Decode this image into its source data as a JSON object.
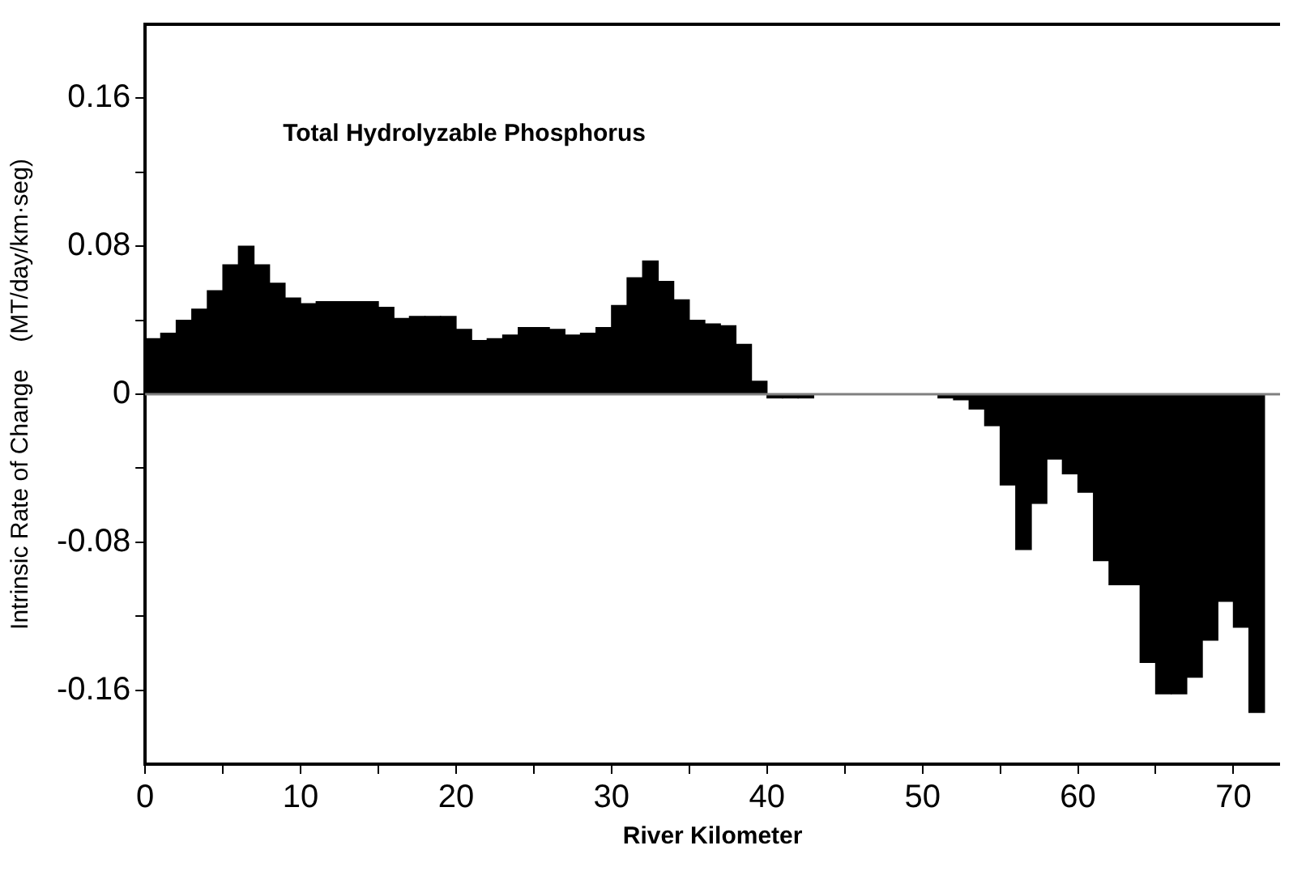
{
  "chart_data": {
    "type": "bar",
    "title": "Total Hydrolyzable Phosphorus",
    "xlabel": "River Kilometer",
    "ylabel": "Intrinsic Rate of Change    (MT/day/km·seg)",
    "x": [
      0.5,
      1.5,
      2.5,
      3.5,
      4.5,
      5.5,
      6.5,
      7.5,
      8.5,
      9.5,
      10.5,
      11.5,
      12.5,
      13.5,
      14.5,
      15.5,
      16.5,
      17.5,
      18.5,
      19.5,
      20.5,
      21.5,
      22.5,
      23.5,
      24.5,
      25.5,
      26.5,
      27.5,
      28.5,
      29.5,
      30.5,
      31.5,
      32.5,
      33.5,
      34.5,
      35.5,
      36.5,
      37.5,
      38.5,
      39.5,
      40.5,
      41.5,
      42.5,
      43.5,
      44.5,
      45.5,
      46.5,
      47.5,
      48.5,
      49.5,
      50.5,
      51.5,
      52.5,
      53.5,
      54.5,
      55.5,
      56.5,
      57.5,
      58.5,
      59.5,
      60.5,
      61.5,
      62.5,
      63.5,
      64.5,
      65.5,
      66.5,
      67.5,
      68.5,
      69.5,
      70.5,
      71.5
    ],
    "values": [
      0.03,
      0.033,
      0.04,
      0.046,
      0.056,
      0.07,
      0.08,
      0.07,
      0.06,
      0.052,
      0.049,
      0.05,
      0.05,
      0.05,
      0.05,
      0.047,
      0.041,
      0.042,
      0.042,
      0.042,
      0.035,
      0.029,
      0.03,
      0.032,
      0.036,
      0.036,
      0.035,
      0.032,
      0.033,
      0.036,
      0.048,
      0.063,
      0.072,
      0.061,
      0.051,
      0.04,
      0.038,
      0.037,
      0.027,
      0.007,
      -0.002,
      -0.002,
      -0.002,
      0,
      0,
      0,
      0,
      0,
      0,
      0,
      0,
      -0.002,
      -0.003,
      -0.008,
      -0.017,
      -0.049,
      -0.084,
      -0.059,
      -0.035,
      -0.043,
      -0.053,
      -0.09,
      -0.103,
      -0.103,
      -0.145,
      -0.162,
      -0.162,
      -0.153,
      -0.133,
      -0.112,
      -0.126,
      -0.172
    ],
    "color": "#000000",
    "xlim": [
      0,
      73
    ],
    "xticks": [
      0,
      {
        "value": 5,
        "label": null
      },
      10,
      {
        "value": 15,
        "label": null
      },
      20,
      {
        "value": 25,
        "label": null
      },
      30,
      {
        "value": 35,
        "label": null
      },
      40,
      {
        "value": 45,
        "label": null
      },
      50,
      {
        "value": 55,
        "label": null
      },
      60,
      {
        "value": 65,
        "label": null
      },
      70
    ],
    "ylim": [
      -0.2,
      0.2
    ],
    "yticks": [
      -0.16,
      {
        "value": -0.12,
        "label": null
      },
      -0.08,
      {
        "value": -0.04,
        "label": null
      },
      0,
      {
        "value": 0.04,
        "label": null
      },
      0.08,
      {
        "value": 0.12,
        "label": null
      },
      0.16
    ],
    "ref_lines": [
      {
        "axis": "y",
        "value": 0,
        "color": "#808080"
      }
    ]
  }
}
